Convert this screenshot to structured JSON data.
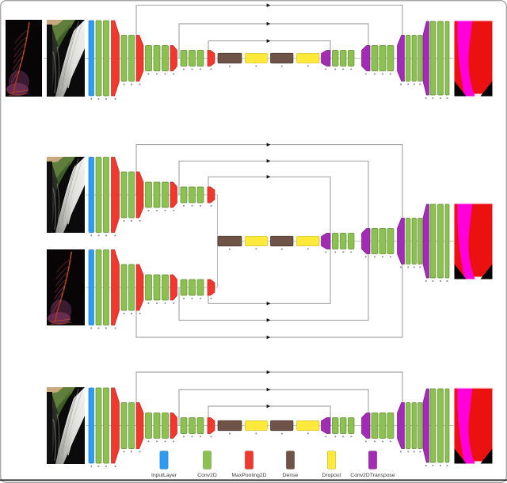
{
  "figure": {
    "description": "Three U-Net style encoder-decoder CNN architecture diagrams (early fusion, two-branch late fusion, single input)",
    "panels": [
      {
        "name": "top-early-fusion",
        "inputs": [
          "vein-map-image",
          "leaf-photo-image"
        ],
        "output": "segmentation-mask-image"
      },
      {
        "name": "middle-two-branch-late-fusion",
        "inputs": [
          "leaf-photo-image",
          "vein-map-image"
        ],
        "output": "segmentation-mask-image"
      },
      {
        "name": "bottom-single-input",
        "inputs": [
          "leaf-photo-image"
        ],
        "output": "segmentation-mask-image"
      }
    ],
    "architecture": {
      "encoder_stages": [
        {
          "stage": 1,
          "layers": [
            "InputLayer",
            "Conv2D",
            "Conv2D",
            "MaxPooling2D"
          ]
        },
        {
          "stage": 2,
          "layers": [
            "Conv2D",
            "Conv2D",
            "MaxPooling2D"
          ]
        },
        {
          "stage": 3,
          "layers": [
            "Conv2D",
            "Conv2D",
            "Conv2D",
            "MaxPooling2D"
          ]
        },
        {
          "stage": 4,
          "layers": [
            "Conv2D",
            "Conv2D",
            "Conv2D",
            "MaxPooling2D"
          ]
        }
      ],
      "bottleneck": [
        "Dense",
        "Dropout",
        "Dense",
        "Dropout"
      ],
      "decoder_stages": [
        {
          "stage": 1,
          "layers": [
            "Conv2DTranspose",
            "Conv2D",
            "Conv2D",
            "Conv2D"
          ]
        },
        {
          "stage": 2,
          "layers": [
            "Conv2DTranspose",
            "Conv2D",
            "Conv2D",
            "Conv2D"
          ]
        },
        {
          "stage": 3,
          "layers": [
            "Conv2DTranspose",
            "Conv2D",
            "Conv2D",
            "Conv2D"
          ]
        },
        {
          "stage": 4,
          "layers": [
            "Conv2DTranspose",
            "Conv2D",
            "Conv2D",
            "Conv2D"
          ]
        }
      ],
      "skip_connections_per_row": 3
    }
  },
  "legend": {
    "items": [
      {
        "label": "InputLayer",
        "color": "#2D9BF0"
      },
      {
        "label": "Conv2D",
        "color": "#8CC152"
      },
      {
        "label": "MaxPooling2D",
        "color": "#F0392E"
      },
      {
        "label": "Dense",
        "color": "#6E5346"
      },
      {
        "label": "Dropout",
        "color": "#FFE93B"
      },
      {
        "label": "Conv2DTranspose",
        "color": "#A32CB5"
      }
    ]
  },
  "colors": {
    "layer_borders": {
      "InputLayer": "#1d7fd0",
      "Conv2D": "#5d8f2f",
      "MaxPooling2D": "#c3241c",
      "Dense": "#4a382f",
      "Dropout": "#dcc11e",
      "Conv2DTranspose": "#7a1f88"
    },
    "connector": "#8f8f8f",
    "arrow": "#151515",
    "tick": "#8a8a8a",
    "figure_border": "#9a9a9a",
    "bottom_rule": "#161616"
  },
  "output_mask": {
    "background_red": "#EC1111",
    "vein_magenta": "#FF00DC",
    "corner_black": "#050505"
  }
}
